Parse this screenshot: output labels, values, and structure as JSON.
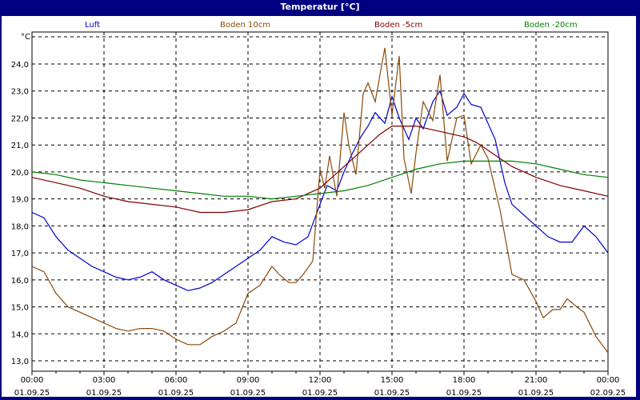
{
  "window": {
    "title": "Temperatur [°C]"
  },
  "chart_data": {
    "type": "line",
    "title": "Temperatur [°C]",
    "ylabel": "°C",
    "xlabel": "",
    "ylim": [
      12.8,
      25.0
    ],
    "yticks": [
      "24,0",
      "23,0",
      "22,0",
      "21,0",
      "20,0",
      "19,0",
      "18,0",
      "17,0",
      "16,0",
      "15,0",
      "14,0",
      "13,0"
    ],
    "ytick_values": [
      24,
      23,
      22,
      21,
      20,
      19,
      18,
      17,
      16,
      15,
      14,
      13
    ],
    "xticks": [
      {
        "time": "00:00",
        "date": "01.09.25"
      },
      {
        "time": "03:00",
        "date": "01.09.25"
      },
      {
        "time": "06:00",
        "date": "01.09.25"
      },
      {
        "time": "09:00",
        "date": "01.09.25"
      },
      {
        "time": "12:00",
        "date": "01.09.25"
      },
      {
        "time": "15:00",
        "date": "01.09.25"
      },
      {
        "time": "18:00",
        "date": "01.09.25"
      },
      {
        "time": "21:00",
        "date": "01.09.25"
      },
      {
        "time": "00:00",
        "date": "02.09.25"
      }
    ],
    "grid": true,
    "legend_position": "top",
    "x_unit": "hours since 01.09.25 00:00",
    "series": [
      {
        "name": "Luft",
        "color": "#0000cc",
        "x": [
          0,
          0.5,
          1,
          1.5,
          2,
          2.5,
          3,
          3.5,
          4,
          4.5,
          5,
          5.5,
          6,
          6.5,
          7,
          7.5,
          8,
          8.5,
          9,
          9.5,
          10,
          10.5,
          11,
          11.5,
          12,
          12.3,
          12.7,
          13,
          13.3,
          13.7,
          14,
          14.3,
          14.7,
          15,
          15.3,
          15.7,
          16,
          16.3,
          16.7,
          17,
          17.3,
          17.7,
          18,
          18.3,
          18.7,
          19,
          19.3,
          19.7,
          20,
          20.5,
          21,
          21.5,
          22,
          22.5,
          23,
          23.5,
          24
        ],
        "y": [
          18.5,
          18.3,
          17.6,
          17.1,
          16.8,
          16.5,
          16.3,
          16.1,
          16.0,
          16.1,
          16.3,
          16.0,
          15.8,
          15.6,
          15.7,
          15.9,
          16.2,
          16.5,
          16.8,
          17.1,
          17.6,
          17.4,
          17.3,
          17.6,
          18.8,
          19.5,
          19.3,
          20.0,
          20.6,
          21.3,
          21.7,
          22.2,
          21.8,
          22.8,
          22.0,
          21.2,
          22.0,
          21.6,
          22.6,
          23.0,
          22.1,
          22.4,
          22.9,
          22.5,
          22.4,
          21.8,
          21.2,
          19.6,
          18.8,
          18.4,
          18.0,
          17.6,
          17.4,
          17.4,
          18.0,
          17.6,
          17.0
        ]
      },
      {
        "name": "Boden 10cm",
        "color": "#8b4a0a",
        "x": [
          0,
          0.5,
          1,
          1.5,
          2,
          2.5,
          3,
          3.5,
          4,
          4.5,
          5,
          5.5,
          6,
          6.5,
          7,
          7.5,
          8,
          8.5,
          9,
          9.5,
          10,
          10.3,
          10.7,
          11,
          11.3,
          11.7,
          12,
          12.2,
          12.4,
          12.7,
          13,
          13.2,
          13.5,
          13.8,
          14,
          14.3,
          14.7,
          15,
          15.3,
          15.5,
          15.8,
          16,
          16.3,
          16.7,
          17,
          17.3,
          17.7,
          18,
          18.3,
          18.7,
          19,
          19.5,
          20,
          20.5,
          21,
          21.3,
          21.7,
          22,
          22.3,
          22.7,
          23,
          23.5,
          24
        ],
        "y": [
          16.5,
          16.3,
          15.5,
          15.0,
          14.8,
          14.6,
          14.4,
          14.2,
          14.1,
          14.2,
          14.2,
          14.1,
          13.8,
          13.6,
          13.6,
          13.9,
          14.1,
          14.4,
          15.5,
          15.8,
          16.5,
          16.2,
          15.9,
          15.9,
          16.2,
          16.7,
          20.1,
          19.4,
          20.6,
          19.1,
          22.2,
          21.0,
          19.9,
          22.9,
          23.3,
          22.6,
          24.6,
          22.1,
          24.3,
          20.5,
          19.2,
          20.7,
          22.6,
          21.9,
          23.6,
          20.4,
          22.0,
          22.1,
          20.3,
          21.0,
          20.5,
          18.6,
          16.2,
          16.0,
          15.2,
          14.6,
          14.9,
          14.9,
          15.3,
          15.0,
          14.8,
          13.9,
          13.3
        ]
      },
      {
        "name": "Boden -5cm",
        "color": "#800000",
        "x": [
          0,
          1,
          2,
          3,
          4,
          5,
          6,
          7,
          8,
          9,
          10,
          11,
          12,
          12.5,
          13,
          13.5,
          14,
          14.5,
          15,
          16,
          17,
          17.5,
          18,
          18.5,
          19,
          20,
          21,
          22,
          23,
          24
        ],
        "y": [
          19.8,
          19.6,
          19.4,
          19.1,
          18.9,
          18.8,
          18.7,
          18.5,
          18.5,
          18.6,
          18.9,
          19.0,
          19.4,
          19.8,
          20.2,
          20.6,
          21.0,
          21.4,
          21.7,
          21.7,
          21.5,
          21.4,
          21.3,
          21.1,
          20.8,
          20.2,
          19.8,
          19.5,
          19.3,
          19.1
        ]
      },
      {
        "name": "Boden -20cm",
        "color": "#008000",
        "x": [
          0,
          1,
          2,
          3,
          4,
          5,
          6,
          7,
          8,
          9,
          10,
          11,
          12,
          13,
          14,
          15,
          16,
          17,
          18,
          19,
          20,
          21,
          22,
          23,
          24
        ],
        "y": [
          20.0,
          19.9,
          19.7,
          19.6,
          19.5,
          19.4,
          19.3,
          19.2,
          19.1,
          19.1,
          19.0,
          19.1,
          19.2,
          19.3,
          19.5,
          19.8,
          20.1,
          20.3,
          20.4,
          20.4,
          20.4,
          20.3,
          20.1,
          19.9,
          19.8
        ]
      }
    ]
  }
}
